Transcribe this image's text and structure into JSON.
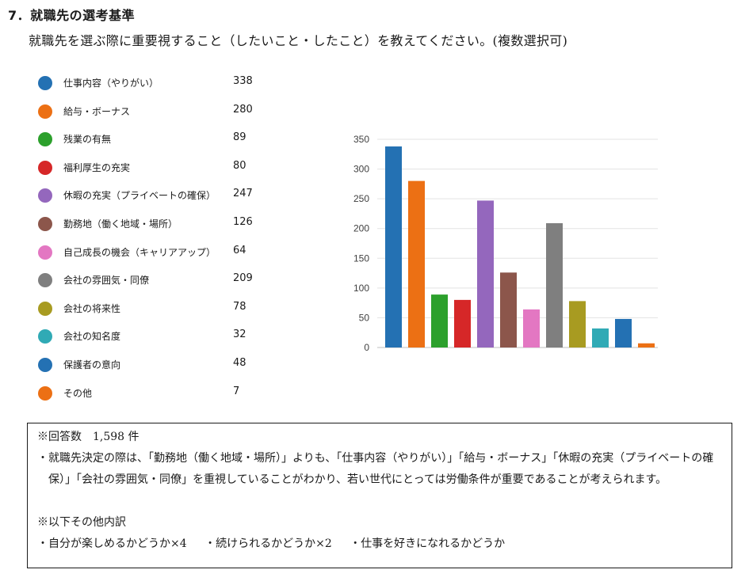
{
  "header": {
    "section_title": "7．就職先の選考基準",
    "question": "就職先を選ぶ際に重要視すること（したいこと・したこと）を教えてください。(複数選択可)"
  },
  "chart_data": {
    "type": "bar",
    "categories": [
      "仕事内容（やりがい）",
      "給与・ボーナス",
      "残業の有無",
      "福利厚生の充実",
      "休暇の充実（プライベートの確保）",
      "勤務地（働く地域・場所）",
      "自己成長の機会（キャリアアップ）",
      "会社の雰囲気・同僚",
      "会社の将来性",
      "会社の知名度",
      "保護者の意向",
      "その他"
    ],
    "values": [
      338,
      280,
      89,
      80,
      247,
      126,
      64,
      209,
      78,
      32,
      48,
      7
    ],
    "colors": [
      "#2471b3",
      "#ec7014",
      "#2ca02c",
      "#d62728",
      "#9467bd",
      "#8c564b",
      "#e377c2",
      "#7f7f7f",
      "#a89b21",
      "#30aab5",
      "#2471b3",
      "#ec7014"
    ],
    "yticks": [
      0,
      50,
      100,
      150,
      200,
      250,
      300,
      350
    ],
    "ylim": [
      0,
      350
    ],
    "grid": true,
    "legend_position": "left"
  },
  "notes": {
    "respondents": "※回答数　1,598 件",
    "comment": "・就職先決定の際は、「勤務地（働く地域・場所）」よりも、「仕事内容（やりがい）」「給与・ボーナス」「休暇の充実（プライベートの確保）」「会社の雰囲気・同僚」を重視していることがわかり、若い世代にとっては労働条件が重要であることが考えられます。",
    "other_heading": "※以下その他内訳",
    "other_items": [
      "・自分が楽しめるかどうか×4",
      "・続けられるかどうか×2",
      "・仕事を好きになれるかどうか"
    ]
  }
}
